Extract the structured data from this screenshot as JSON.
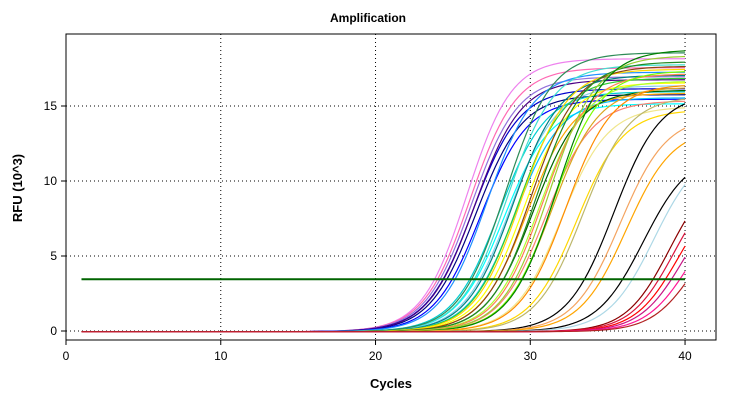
{
  "chart_data": {
    "type": "line",
    "title": "Amplification",
    "xlabel": "Cycles",
    "ylabel": "RFU (10^3)",
    "xlim": [
      0,
      42
    ],
    "ylim": [
      -0.6,
      19.8
    ],
    "xticks": [
      0,
      10,
      20,
      30,
      40
    ],
    "yticks": [
      0,
      5,
      10,
      15
    ],
    "grid": true,
    "legend": "none",
    "threshold": {
      "value": 3.45,
      "color": "#006400"
    },
    "cycles": [
      1,
      40
    ],
    "series": [
      {
        "color": "#ee82ee",
        "plateau": 18.2,
        "midpoint": 25.9,
        "slope": 1.45
      },
      {
        "color": "#ff69b4",
        "plateau": 17.6,
        "midpoint": 26.1,
        "slope": 1.5
      },
      {
        "color": "#9370db",
        "plateau": 17.0,
        "midpoint": 26.2,
        "slope": 1.5
      },
      {
        "color": "#0000cd",
        "plateau": 16.2,
        "midpoint": 26.3,
        "slope": 1.5
      },
      {
        "color": "#000080",
        "plateau": 15.8,
        "midpoint": 26.5,
        "slope": 1.5
      },
      {
        "color": "#4b0082",
        "plateau": 16.8,
        "midpoint": 26.4,
        "slope": 1.5
      },
      {
        "color": "#0000ff",
        "plateau": 15.5,
        "midpoint": 26.8,
        "slope": 1.5
      },
      {
        "color": "#1e90ff",
        "plateau": 17.3,
        "midpoint": 27.2,
        "slope": 1.5
      },
      {
        "color": "#00ced1",
        "plateau": 16.0,
        "midpoint": 28.0,
        "slope": 1.5
      },
      {
        "color": "#00ffff",
        "plateau": 15.2,
        "midpoint": 28.3,
        "slope": 1.5
      },
      {
        "color": "#40e0d0",
        "plateau": 17.8,
        "midpoint": 28.5,
        "slope": 1.5
      },
      {
        "color": "#87ceeb",
        "plateau": 16.4,
        "midpoint": 28.7,
        "slope": 1.5
      },
      {
        "color": "#2e8b57",
        "plateau": 18.6,
        "midpoint": 28.4,
        "slope": 1.5
      },
      {
        "color": "#008080",
        "plateau": 17.1,
        "midpoint": 28.9,
        "slope": 1.5
      },
      {
        "color": "#00bfff",
        "plateau": 15.6,
        "midpoint": 29.0,
        "slope": 1.5
      },
      {
        "color": "#32cd32",
        "plateau": 16.9,
        "midpoint": 29.2,
        "slope": 1.5
      },
      {
        "color": "#ffd700",
        "plateau": 17.5,
        "midpoint": 29.4,
        "slope": 1.5
      },
      {
        "color": "#ffff00",
        "plateau": 16.6,
        "midpoint": 29.6,
        "slope": 1.5
      },
      {
        "color": "#ffa500",
        "plateau": 15.9,
        "midpoint": 29.8,
        "slope": 1.5
      },
      {
        "color": "#8b4513",
        "plateau": 17.7,
        "midpoint": 30.0,
        "slope": 1.5
      },
      {
        "color": "#006400",
        "plateau": 16.1,
        "midpoint": 30.2,
        "slope": 1.5
      },
      {
        "color": "#228b22",
        "plateau": 18.0,
        "midpoint": 30.4,
        "slope": 1.5
      },
      {
        "color": "#adff2f",
        "plateau": 16.7,
        "midpoint": 30.6,
        "slope": 1.5
      },
      {
        "color": "#ff7f50",
        "plateau": 17.2,
        "midpoint": 30.8,
        "slope": 1.5
      },
      {
        "color": "#fa8072",
        "plateau": 15.4,
        "midpoint": 31.0,
        "slope": 1.5
      },
      {
        "color": "#9acd32",
        "plateau": 18.4,
        "midpoint": 31.2,
        "slope": 1.5
      },
      {
        "color": "#daa520",
        "plateau": 16.3,
        "midpoint": 31.4,
        "slope": 1.5
      },
      {
        "color": "#7cfc00",
        "plateau": 17.4,
        "midpoint": 31.5,
        "slope": 1.5
      },
      {
        "color": "#008000",
        "plateau": 18.8,
        "midpoint": 31.7,
        "slope": 1.5
      },
      {
        "color": "#f0e68c",
        "plateau": 15.0,
        "midpoint": 32.0,
        "slope": 1.5
      },
      {
        "color": "#ff8c00",
        "plateau": 16.5,
        "midpoint": 32.3,
        "slope": 1.5
      },
      {
        "color": "#ffd700",
        "plateau": 14.8,
        "midpoint": 33.0,
        "slope": 1.5
      },
      {
        "color": "#bdb76b",
        "plateau": 15.7,
        "midpoint": 33.4,
        "slope": 1.5
      },
      {
        "color": "#000000",
        "plateau": 15.9,
        "midpoint": 35.4,
        "slope": 1.5
      },
      {
        "color": "#f4a460",
        "plateau": 14.4,
        "midpoint": 35.8,
        "slope": 1.5
      },
      {
        "color": "#ffa500",
        "plateau": 13.6,
        "midpoint": 36.2,
        "slope": 1.5
      },
      {
        "color": "#000000",
        "plateau": 12.0,
        "midpoint": 37.3,
        "slope": 1.5
      },
      {
        "color": "#add8e6",
        "plateau": 12.4,
        "midpoint": 38.0,
        "slope": 1.5
      },
      {
        "color": "#8b0000",
        "plateau": 11.0,
        "midpoint": 39.0,
        "slope": 1.4
      },
      {
        "color": "#dc143c",
        "plateau": 10.6,
        "midpoint": 39.3,
        "slope": 1.4
      },
      {
        "color": "#ff0000",
        "plateau": 10.0,
        "midpoint": 39.6,
        "slope": 1.4
      },
      {
        "color": "#c71585",
        "plateau": 9.6,
        "midpoint": 39.9,
        "slope": 1.4
      },
      {
        "color": "#ff1493",
        "plateau": 9.0,
        "midpoint": 40.3,
        "slope": 1.4
      },
      {
        "color": "#b22222",
        "plateau": 8.5,
        "midpoint": 40.7,
        "slope": 1.4
      }
    ]
  }
}
